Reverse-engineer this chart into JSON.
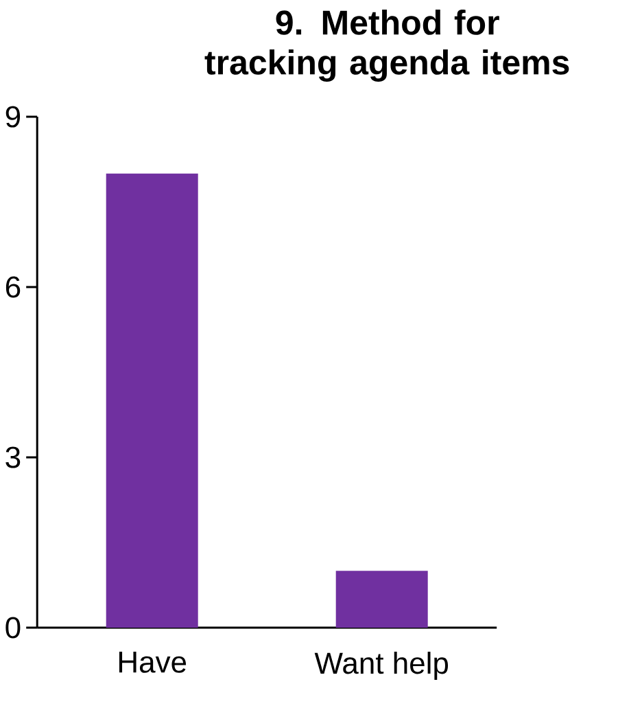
{
  "chart_data": {
    "type": "bar",
    "title": "9. Method for tracking agenda items",
    "categories": [
      "Have",
      "Want help"
    ],
    "values": [
      8,
      1
    ],
    "color": "#7030a0",
    "ylim": [
      0,
      9
    ],
    "yticks": [
      0,
      3,
      6,
      9
    ]
  }
}
